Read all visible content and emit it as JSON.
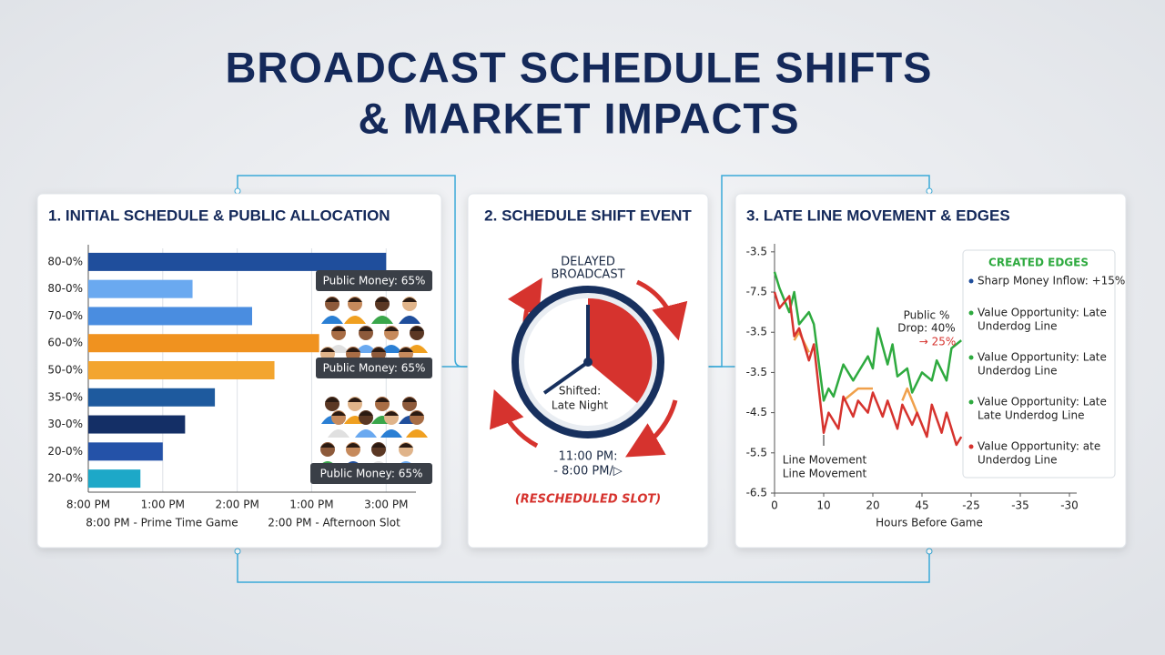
{
  "title_lines": [
    "BROADCAST SCHEDULE SHIFTS",
    "& MARKET IMPACTS"
  ],
  "panel1": {
    "heading": "1. INITIAL SCHEDULE & PUBLIC ALLOCATION",
    "chart": {
      "type": "bar",
      "orientation": "horizontal",
      "categories": [
        "80-0%",
        "80-0%",
        "70-0%",
        "60-0%",
        "50-0%",
        "35-0%",
        "30-0%",
        "20-0%",
        "20-0%"
      ],
      "values": [
        4.0,
        1.4,
        2.2,
        3.1,
        2.5,
        1.7,
        1.3,
        1.0,
        0.7
      ],
      "colors": [
        "#1f4e9c",
        "#6aa9f0",
        "#4a8de0",
        "#f0921f",
        "#f3a52f",
        "#1e5a9e",
        "#142f66",
        "#2452a8",
        "#1da8c8"
      ],
      "xlim": [
        0,
        4.4
      ],
      "xticks": [
        {
          "value": 0,
          "label": "8:00 PM"
        },
        {
          "value": 1,
          "label": "1:00 PM"
        },
        {
          "value": 2,
          "label": "2:00 PM"
        },
        {
          "value": 3,
          "label": "1:00 PM"
        },
        {
          "value": 4,
          "label": "3:00 PM"
        }
      ],
      "grid": true
    },
    "callouts": [
      "Public Money: 65%",
      "Public Money: 65%",
      "Public Money: 65%"
    ],
    "footnotes": [
      "8:00 PM - Prime Time Game",
      "2:00 PM - Afternoon Slot"
    ]
  },
  "panel2": {
    "heading": "2. SCHEDULE SHIFT EVENT",
    "banner_lines": [
      "DELAYED",
      "BROADCAST"
    ],
    "clock_lines": [
      "Shifted:",
      "Late Night"
    ],
    "time_lines": [
      "11:00 PM:",
      "- 8:00 PM/▷"
    ],
    "caption": "(RESCHEDULED SLOT)"
  },
  "panel3": {
    "heading": "3. LATE LINE MOVEMENT & EDGES",
    "chart": {
      "type": "line",
      "x_label": "Hours Before Game",
      "xlim": [
        0,
        6
      ],
      "ylim": [
        0,
        6.2
      ],
      "xticks": [
        0,
        {
          "value": 1,
          "label": "10"
        },
        {
          "value": 2,
          "label": "20"
        },
        {
          "value": 3,
          "label": "45"
        },
        {
          "value": 4,
          "label": "-25"
        },
        {
          "value": 5,
          "label": "-35"
        },
        {
          "value": 6,
          "label": "-30"
        }
      ],
      "yticks": [
        {
          "value": 6,
          "label": "-3.5"
        },
        {
          "value": 5,
          "label": "-7.5"
        },
        {
          "value": 4,
          "label": "-3.5"
        },
        {
          "value": 3,
          "label": "-3.5"
        },
        {
          "value": 2,
          "label": "-4.5"
        },
        {
          "value": 1,
          "label": "-5.5"
        },
        {
          "value": 0,
          "label": "-6.5"
        }
      ],
      "series": [
        {
          "color": "#2eaa3f",
          "x": [
            0,
            0.1,
            0.3,
            0.4,
            0.5,
            0.7,
            0.8,
            1.0,
            1.1,
            1.2,
            1.4,
            1.6,
            1.7,
            1.9,
            2.0,
            2.1,
            2.3,
            2.4,
            2.5,
            2.7,
            2.8,
            3.0,
            3.2,
            3.3,
            3.5,
            3.6,
            3.8
          ],
          "values": [
            5.5,
            5.1,
            4.5,
            5.0,
            4.2,
            4.5,
            4.2,
            2.3,
            2.6,
            2.4,
            3.2,
            2.8,
            3.0,
            3.4,
            3.1,
            4.1,
            3.2,
            3.7,
            2.9,
            3.1,
            2.5,
            3.0,
            2.8,
            3.3,
            2.8,
            3.6,
            3.8
          ]
        },
        {
          "color": "#f0a04b",
          "x": [
            0.4,
            0.5,
            0.7,
            1.0,
            1.4,
            1.7,
            2.0,
            2.3,
            2.6,
            2.7,
            2.8,
            2.9
          ],
          "values": [
            3.8,
            4.0,
            3.5,
            null,
            2.3,
            2.6,
            2.6,
            null,
            2.3,
            2.6,
            2.3,
            2.0
          ]
        },
        {
          "color": "#d6332e",
          "x": [
            0,
            0.1,
            0.3,
            0.4,
            0.5,
            0.7,
            0.8,
            1.0,
            1.1,
            1.3,
            1.4,
            1.6,
            1.7,
            1.9,
            2.0,
            2.2,
            2.3,
            2.5,
            2.6,
            2.8,
            2.9,
            3.1,
            3.2,
            3.4,
            3.5,
            3.7,
            3.8
          ],
          "values": [
            5.0,
            4.6,
            4.9,
            3.9,
            4.1,
            3.3,
            3.7,
            1.5,
            2.0,
            1.6,
            2.4,
            1.9,
            2.3,
            2.0,
            2.5,
            1.9,
            2.3,
            1.6,
            2.2,
            1.7,
            2.0,
            1.4,
            2.2,
            1.5,
            2.0,
            1.2,
            1.4
          ]
        }
      ]
    },
    "annotation_lines": [
      "Public %",
      "Drop: 40%",
      "→ 25%"
    ],
    "movement_lines": [
      "Line Movement",
      "Line Movement"
    ],
    "legend": {
      "title": "CREATED EDGES",
      "bullet_colors": [
        "#1f4e9c",
        "#2eaa3f",
        "#2eaa3f",
        "#2eaa3f",
        "#d6332e"
      ],
      "items": [
        [
          "Sharp Money Inflow: +15%"
        ],
        [
          "Value Opportunity: Late",
          "Underdog Line"
        ],
        [
          "Value Opportunity: Late",
          "Underdog Line"
        ],
        [
          "Value Opportunity: Late",
          "Late Underdog Line"
        ],
        [
          "Value Opportunity: ate",
          "Underdog Line"
        ]
      ]
    }
  }
}
